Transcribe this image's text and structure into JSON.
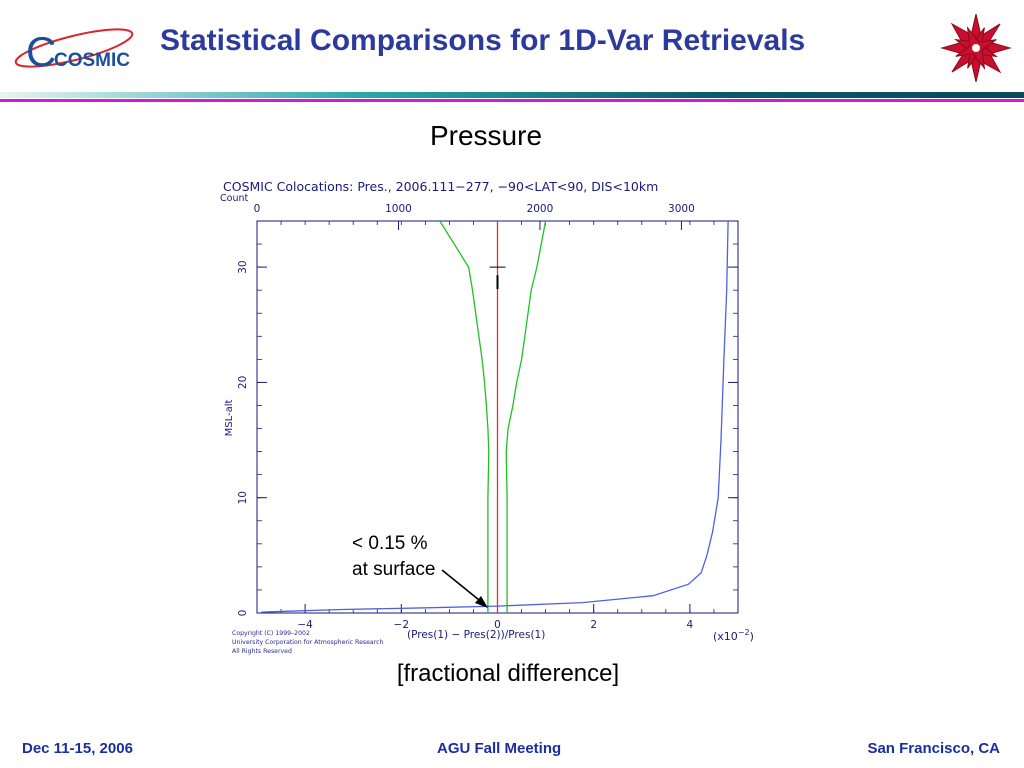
{
  "header": {
    "logo_text": "COSMIC",
    "title": "Statistical Comparisons for 1D-Var Retrievals"
  },
  "subtitle": "Pressure",
  "chart_data": {
    "type": "line",
    "title": "COSMIC Colocations: Pres., 2006.111−277, −90<LAT<90, DIS<10km",
    "xlabel": "(Pres(1) − Pres(2))/Pres(1)",
    "x_multiplier": "(x10",
    "x_multiplier_exp": "−2",
    "x_multiplier_close": ")",
    "ylabel": "MSL-alt",
    "top_axis_label": "Count",
    "xlim": [
      -5,
      5
    ],
    "ylim": [
      0,
      34
    ],
    "top_xlim": [
      0,
      3400
    ],
    "x_ticks": [
      -4,
      -2,
      0,
      2,
      4
    ],
    "x_tick_labels": [
      "−4",
      "−2",
      "0",
      "2",
      "4"
    ],
    "y_ticks": [
      0,
      10,
      20,
      30
    ],
    "y_tick_labels": [
      "0",
      "10",
      "20",
      "30"
    ],
    "top_ticks": [
      0,
      1000,
      2000,
      3000
    ],
    "top_tick_labels": [
      "0",
      "1000",
      "2000",
      "3000"
    ],
    "mean_bias": {
      "name": "mean",
      "color": "#e03030",
      "x": [
        0.0,
        0.0
      ],
      "y": [
        0,
        34
      ]
    },
    "std_lower": {
      "color": "#22c022",
      "x": [
        -0.2,
        -0.2,
        -0.2,
        -0.18,
        -0.2,
        -0.23,
        -0.27,
        -0.32,
        -0.42,
        -0.52,
        -0.6,
        -1.2
      ],
      "y": [
        0,
        5,
        10,
        14,
        16,
        18,
        20,
        22,
        25,
        28,
        30,
        34
      ]
    },
    "std_upper": {
      "color": "#22c022",
      "x": [
        0.2,
        0.2,
        0.2,
        0.18,
        0.22,
        0.32,
        0.4,
        0.5,
        0.6,
        0.7,
        0.82,
        1.0
      ],
      "y": [
        0,
        5,
        10,
        14,
        16,
        18,
        20,
        22,
        25,
        28,
        30,
        34
      ]
    },
    "count": {
      "color": "#5060e0",
      "count": [
        30,
        200,
        600,
        1200,
        1700,
        2300,
        2800,
        3050,
        3140,
        3180,
        3220,
        3260,
        3280,
        3300,
        3320,
        3330
      ],
      "y": [
        0.08,
        0.15,
        0.3,
        0.45,
        0.6,
        0.9,
        1.5,
        2.5,
        3.5,
        5.0,
        7.0,
        10.0,
        15.0,
        22.0,
        28.0,
        34.0
      ]
    },
    "copyright": [
      "Copyright (C) 1999–2002",
      "University Corporation for Atmospheric Research",
      "All Rights Reserved"
    ]
  },
  "annotation": {
    "line1": "< 0.15 %",
    "line2": "at surface"
  },
  "caption": "[fractional difference]",
  "footer": {
    "left": "Dec 11-15, 2006",
    "center": "AGU Fall Meeting",
    "right": "San Francisco, CA"
  },
  "colors": {
    "title": "#2b3a9c",
    "footer": "#1a2ea0",
    "rule_green": "#0a8a7a",
    "rule_magenta": "#d01cd0"
  }
}
